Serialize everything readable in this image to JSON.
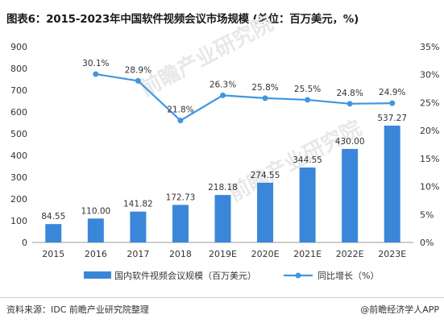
{
  "title": "图表6：2015-2023年中国软件视频会议市场规模 (单位：百万美元，%)",
  "source": "资料来源：IDC 前瞻产业研究院整理",
  "brand": "@前瞻经济学人APP",
  "watermark": "前瞻产业研究院",
  "colors": {
    "bar": "#3a87d9",
    "line": "#4296e0",
    "axis": "#999999",
    "text": "#333333"
  },
  "chart_data": {
    "type": "bar",
    "categories": [
      "2015",
      "2016",
      "2017",
      "2018",
      "2019E",
      "2020E",
      "2021E",
      "2022E",
      "2023E"
    ],
    "series": [
      {
        "name": "国内软件视频会议规模（百万美元）",
        "type": "bar",
        "axis": "left",
        "values": [
          84.55,
          110.0,
          141.82,
          172.73,
          218.18,
          274.55,
          344.55,
          430.0,
          537.27
        ],
        "labels": [
          "84.55",
          "110.00",
          "141.82",
          "172.73",
          "218.18",
          "274.55",
          "344.55",
          "430.00",
          "537.27"
        ]
      },
      {
        "name": "同比增长（%）",
        "type": "line",
        "axis": "right",
        "values": [
          null,
          30.1,
          28.9,
          21.8,
          26.3,
          25.8,
          25.5,
          24.8,
          24.9
        ],
        "labels": [
          "",
          "30.1%",
          "28.9%",
          "21.8%",
          "26.3%",
          "25.8%",
          "25.5%",
          "24.8%",
          "24.9%"
        ]
      }
    ],
    "y_left": {
      "ylim": [
        0,
        900
      ],
      "ticks": [
        0,
        100,
        200,
        300,
        400,
        500,
        600,
        700,
        800,
        900
      ],
      "tick_labels": [
        "0",
        "100",
        "200",
        "300",
        "400",
        "500",
        "600",
        "700",
        "800",
        "900"
      ]
    },
    "y_right": {
      "ylim": [
        0,
        35
      ],
      "ticks": [
        0,
        5,
        10,
        15,
        20,
        25,
        30,
        35
      ],
      "tick_labels": [
        "0%",
        "5%",
        "10%",
        "15%",
        "20%",
        "25%",
        "30%",
        "35%"
      ]
    },
    "grid": false,
    "legend_position": "bottom"
  }
}
